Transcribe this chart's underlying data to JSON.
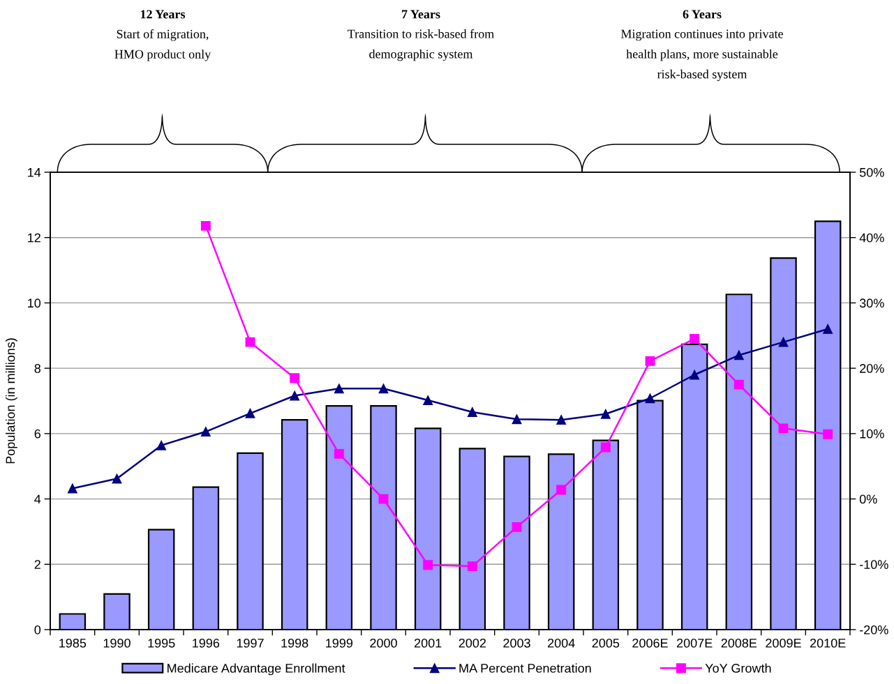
{
  "chart_data": {
    "type": "bar",
    "ylabel": "Population (in millions)",
    "annotations": [
      "12 Years",
      "Start of migration,\nHMO product only",
      "7 Years",
      "Transition to risk-based from\ndemographic system",
      "6 Years",
      "Migration continues into private\nhealth plans, more sustainable\nrisk-based system"
    ],
    "categories": [
      "1985",
      "1990",
      "1995",
      "1996",
      "1997",
      "1998",
      "1999",
      "2000",
      "2001",
      "2002",
      "2003",
      "2004",
      "2005",
      "2006E",
      "2007E",
      "2008E",
      "2009E",
      "2010E"
    ],
    "series": [
      {
        "name": "Medicare Advantage Enrollment",
        "color": "#9999ff",
        "values": [
          0.48,
          1.09,
          3.06,
          4.36,
          5.4,
          6.42,
          6.85,
          6.85,
          6.16,
          5.54,
          5.3,
          5.37,
          5.79,
          7.01,
          8.73,
          10.26,
          11.37,
          12.5
        ]
      },
      {
        "name": "MA Percent Penetration",
        "type": "line",
        "axis": "y2",
        "color": "#000080",
        "marker": "triangle",
        "values": [
          1.6,
          3.1,
          8.2,
          10.3,
          13.1,
          15.8,
          16.9,
          16.9,
          15.1,
          13.3,
          12.2,
          12.1,
          13.0,
          15.4,
          19.0,
          22.0,
          24.0,
          26.0
        ]
      },
      {
        "name": "YoY Growth",
        "type": "line",
        "axis": "y2",
        "color": "#ff00ff",
        "marker": "square",
        "values": [
          null,
          null,
          null,
          41.8,
          24.0,
          18.5,
          6.9,
          0.0,
          -10.1,
          -10.3,
          -4.3,
          1.4,
          7.9,
          21.1,
          24.5,
          17.5,
          10.8,
          9.9
        ]
      }
    ],
    "ylim": [
      0,
      14
    ],
    "yticks": [
      0,
      2,
      4,
      6,
      8,
      10,
      12,
      14
    ],
    "y2lim": [
      -20,
      50
    ],
    "y2ticks": [
      {
        "value": -20,
        "label": "-20%"
      },
      {
        "value": -10,
        "label": "-10%"
      },
      {
        "value": 0,
        "label": "0%"
      },
      {
        "value": 10,
        "label": "10%"
      },
      {
        "value": 20,
        "label": "20%"
      },
      {
        "value": 30,
        "label": "30%"
      },
      {
        "value": 40,
        "label": "40%"
      },
      {
        "value": 50,
        "label": "50%"
      }
    ],
    "grid": "y",
    "legend": "bottom",
    "line_style": "solid"
  }
}
